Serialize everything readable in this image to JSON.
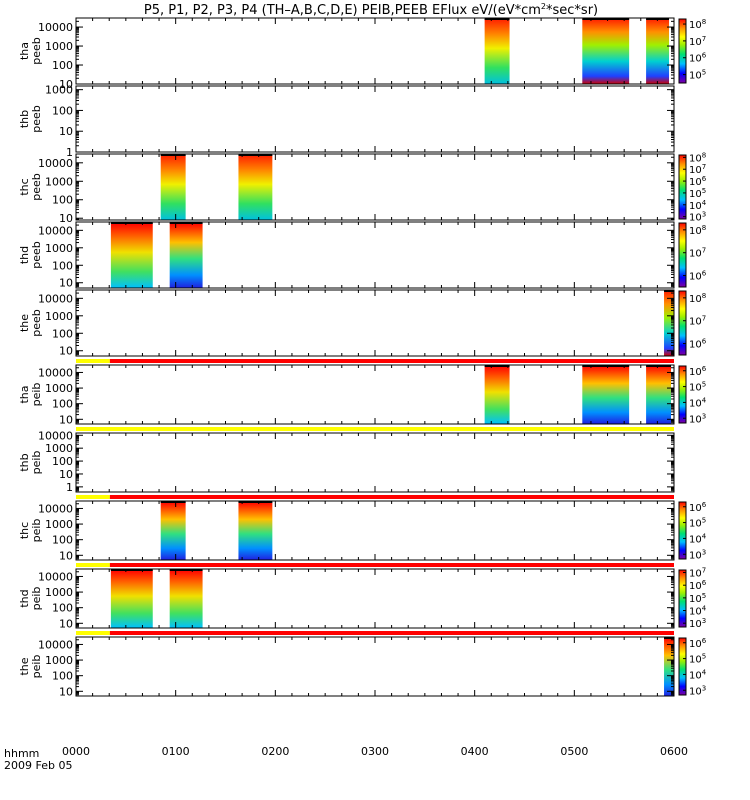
{
  "title": {
    "main": "P5, P1, P2, P3, P4 (TH–A,B,C,D,E) PEIB,PEEB EFlux eV/(eV*cm",
    "sup": "2",
    "tail": "*sec*sr)"
  },
  "footer": {
    "hhmm": "hhmm",
    "date": "2009 Feb 05"
  },
  "colors": {
    "red": "#ff0000",
    "yellow": "#ffff00"
  },
  "chart_data": {
    "type": "heatmap",
    "x_ticks": [
      "0000",
      "0100",
      "0200",
      "0300",
      "0400",
      "0500",
      "0600"
    ],
    "x_range": [
      "00:00",
      "06:00"
    ],
    "panels": [
      {
        "id": "tha-peeb",
        "ylabel": [
          "tha",
          "peeb"
        ],
        "ylog": true,
        "yrange": [
          10,
          30000
        ],
        "yticks": [
          "10000",
          "1000",
          "100",
          "10"
        ],
        "ytick_vals": [
          10000,
          1000,
          100,
          10
        ],
        "cbar": {
          "ticks": [
            {
              "b": "10",
              "e": "8",
              "v": 8
            },
            {
              "b": "10",
              "e": "7",
              "v": 7
            },
            {
              "b": "10",
              "e": "6",
              "v": 6
            },
            {
              "b": "10",
              "e": "5",
              "v": 5
            }
          ],
          "range": [
            4.5,
            8.3
          ]
        },
        "blocks": [
          [
            4.1,
            4.35,
            "gh"
          ],
          [
            5.08,
            5.55,
            "mix"
          ],
          [
            5.72,
            5.95,
            "mix"
          ]
        ]
      },
      {
        "id": "thb-peeb",
        "ylabel": [
          "thb",
          "peeb"
        ],
        "ylog": true,
        "yrange": [
          1,
          1500
        ],
        "yticks": [
          "1000",
          "100",
          "10",
          "1"
        ],
        "ytick_vals": [
          1000,
          100,
          10,
          1
        ],
        "blocks": []
      },
      {
        "id": "thc-peeb",
        "ylabel": [
          "thc",
          "peeb"
        ],
        "ylog": true,
        "yrange": [
          8,
          30000
        ],
        "yticks": [
          "10000",
          "1000",
          "100",
          "10"
        ],
        "ytick_vals": [
          10000,
          1000,
          100,
          10
        ],
        "cbar": {
          "ticks": [
            {
              "b": "10",
              "e": "8",
              "v": 8
            },
            {
              "b": "10",
              "e": "7",
              "v": 7
            },
            {
              "b": "10",
              "e": "6",
              "v": 6
            },
            {
              "b": "10",
              "e": "5",
              "v": 5
            },
            {
              "b": "10",
              "e": "4",
              "v": 4
            },
            {
              "b": "10",
              "e": "3",
              "v": 3
            }
          ],
          "range": [
            2.8,
            8.2
          ]
        },
        "blocks": [
          [
            0.85,
            1.1,
            "gh"
          ],
          [
            1.63,
            1.97,
            "gh"
          ]
        ]
      },
      {
        "id": "thd-peeb",
        "ylabel": [
          "thd",
          "peeb"
        ],
        "ylog": true,
        "yrange": [
          5,
          30000
        ],
        "yticks": [
          "10000",
          "1000",
          "100",
          "10"
        ],
        "ytick_vals": [
          10000,
          1000,
          100,
          10
        ],
        "cbar": {
          "ticks": [
            {
              "b": "10",
              "e": "8",
              "v": 8
            },
            {
              "b": "10",
              "e": "7",
              "v": 7
            },
            {
              "b": "10",
              "e": "6",
              "v": 6
            }
          ],
          "range": [
            5.5,
            8.3
          ]
        },
        "blocks": [
          [
            0.35,
            0.77,
            "hg"
          ],
          [
            0.94,
            1.27,
            "hb"
          ]
        ]
      },
      {
        "id": "the-peeb",
        "ylabel": [
          "the",
          "peeb"
        ],
        "ylog": true,
        "yrange": [
          5,
          30000
        ],
        "yticks": [
          "10000",
          "1000",
          "100",
          "10"
        ],
        "ytick_vals": [
          10000,
          1000,
          100,
          10
        ],
        "cbar": {
          "ticks": [
            {
              "b": "10",
              "e": "8",
              "v": 8
            },
            {
              "b": "10",
              "e": "7",
              "v": 7
            },
            {
              "b": "10",
              "e": "6",
              "v": 6
            }
          ],
          "range": [
            5.5,
            8.3
          ]
        },
        "blocks": [
          [
            5.9,
            6.0,
            "mix"
          ]
        ]
      },
      {
        "id": "tha-peib",
        "ylabel": [
          "tha",
          "peib"
        ],
        "ylog": true,
        "yrange": [
          5,
          30000
        ],
        "yticks": [
          "10000",
          "1000",
          "100",
          "10"
        ],
        "ytick_vals": [
          10000,
          1000,
          100,
          10
        ],
        "cbar": {
          "ticks": [
            {
              "b": "10",
              "e": "6",
              "v": 6
            },
            {
              "b": "10",
              "e": "5",
              "v": 5
            },
            {
              "b": "10",
              "e": "4",
              "v": 4
            },
            {
              "b": "10",
              "e": "3",
              "v": 3
            }
          ],
          "range": [
            2.7,
            6.3
          ]
        },
        "blocks": [
          [
            4.1,
            4.35,
            "hg"
          ],
          [
            5.08,
            5.55,
            "hb"
          ],
          [
            5.72,
            5.97,
            "hb"
          ]
        ],
        "bar": [
          [
            0.0,
            0.34,
            "yellow"
          ],
          [
            0.34,
            6.0,
            "red"
          ]
        ]
      },
      {
        "id": "thb-peib",
        "ylabel": [
          "thb",
          "peib"
        ],
        "ylog": true,
        "yrange": [
          0.4,
          15000
        ],
        "yticks": [
          "10000",
          "1000",
          "100",
          "10",
          "1"
        ],
        "ytick_vals": [
          10000,
          1000,
          100,
          10,
          1
        ],
        "blocks": [],
        "bar": [
          [
            0.0,
            6.0,
            "yellow"
          ]
        ]
      },
      {
        "id": "thc-peib",
        "ylabel": [
          "thc",
          "peib"
        ],
        "ylog": true,
        "yrange": [
          5,
          30000
        ],
        "yticks": [
          "10000",
          "1000",
          "100",
          "10"
        ],
        "ytick_vals": [
          10000,
          1000,
          100,
          10
        ],
        "cbar": {
          "ticks": [
            {
              "b": "10",
              "e": "6",
              "v": 6
            },
            {
              "b": "10",
              "e": "5",
              "v": 5
            },
            {
              "b": "10",
              "e": "4",
              "v": 4
            },
            {
              "b": "10",
              "e": "3",
              "v": 3
            }
          ],
          "range": [
            2.7,
            6.3
          ]
        },
        "blocks": [
          [
            0.85,
            1.1,
            "hb"
          ],
          [
            1.63,
            1.97,
            "hb"
          ]
        ],
        "bar": [
          [
            0.0,
            0.34,
            "yellow"
          ],
          [
            0.34,
            6.0,
            "red"
          ]
        ]
      },
      {
        "id": "thd-peib",
        "ylabel": [
          "thd",
          "peib"
        ],
        "ylog": true,
        "yrange": [
          5,
          30000
        ],
        "yticks": [
          "10000",
          "1000",
          "100",
          "10"
        ],
        "ytick_vals": [
          10000,
          1000,
          100,
          10
        ],
        "cbar": {
          "ticks": [
            {
              "b": "10",
              "e": "7",
              "v": 7
            },
            {
              "b": "10",
              "e": "6",
              "v": 6
            },
            {
              "b": "10",
              "e": "5",
              "v": 5
            },
            {
              "b": "10",
              "e": "4",
              "v": 4
            },
            {
              "b": "10",
              "e": "3",
              "v": 3
            }
          ],
          "range": [
            2.7,
            7.2
          ]
        },
        "blocks": [
          [
            0.35,
            0.77,
            "hg"
          ],
          [
            0.94,
            1.27,
            "hg"
          ]
        ],
        "bar": [
          [
            0.0,
            0.34,
            "yellow"
          ],
          [
            0.34,
            6.0,
            "red"
          ]
        ]
      },
      {
        "id": "the-peib",
        "ylabel": [
          "the",
          "peib"
        ],
        "ylog": true,
        "yrange": [
          5,
          30000
        ],
        "yticks": [
          "10000",
          "1000",
          "100",
          "10"
        ],
        "ytick_vals": [
          10000,
          1000,
          100,
          10
        ],
        "cbar": {
          "ticks": [
            {
              "b": "10",
              "e": "6",
              "v": 6
            },
            {
              "b": "10",
              "e": "5",
              "v": 5
            },
            {
              "b": "10",
              "e": "4",
              "v": 4
            },
            {
              "b": "10",
              "e": "3",
              "v": 3
            }
          ],
          "range": [
            2.7,
            6.3
          ]
        },
        "blocks": [
          [
            5.9,
            6.0,
            "hb"
          ]
        ],
        "bar": [
          [
            0.0,
            0.34,
            "yellow"
          ],
          [
            0.34,
            6.0,
            "red"
          ]
        ]
      }
    ]
  }
}
